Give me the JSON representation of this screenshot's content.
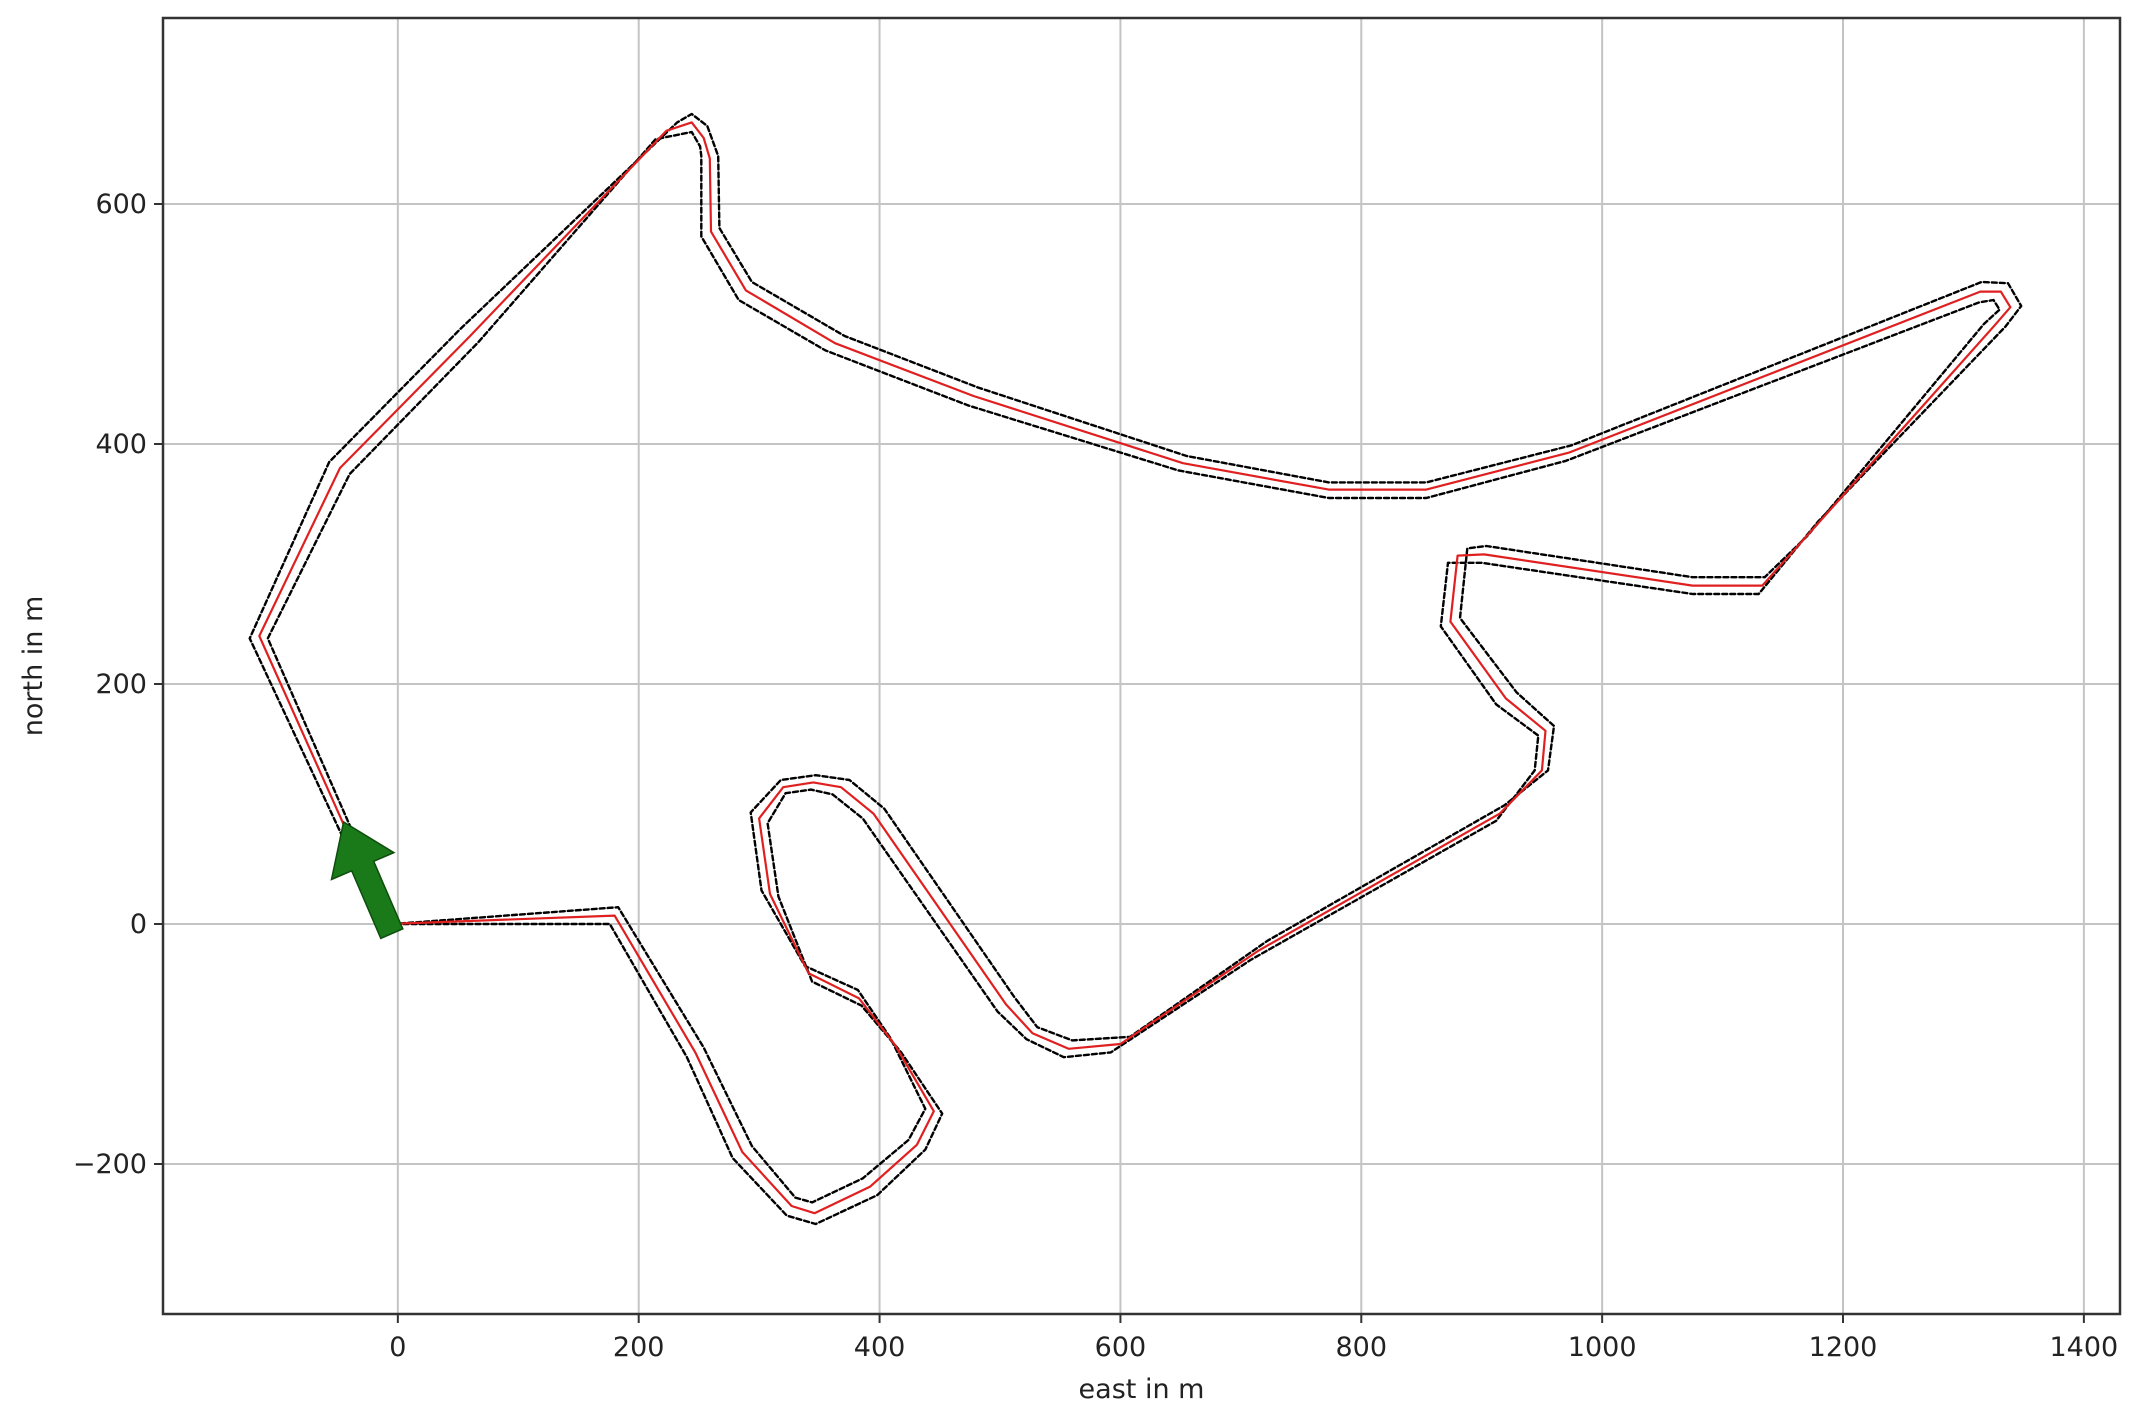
{
  "chart_data": {
    "type": "line",
    "title": "",
    "xlabel": "east in m",
    "ylabel": "north in m",
    "xlim": [
      -195,
      1430
    ],
    "ylim": [
      -325,
      755
    ],
    "x_ticks": [
      0,
      200,
      400,
      600,
      800,
      1000,
      1200,
      1400
    ],
    "y_ticks": [
      -200,
      0,
      200,
      400,
      600
    ],
    "grid": true,
    "series": [
      {
        "role": "track-boundary-outer",
        "color": "#000000",
        "style": "dashed",
        "points": [
          [
            -12,
            0
          ],
          [
            -123,
            238
          ],
          [
            -57,
            385
          ],
          [
            52,
            496
          ],
          [
            232,
            668
          ],
          [
            244,
            675
          ],
          [
            257,
            665
          ],
          [
            266,
            640
          ],
          [
            267,
            580
          ],
          [
            294,
            535
          ],
          [
            371,
            490
          ],
          [
            482,
            447
          ],
          [
            655,
            390
          ],
          [
            773,
            368
          ],
          [
            854,
            368
          ],
          [
            975,
            399
          ],
          [
            1315,
            535
          ],
          [
            1337,
            534
          ],
          [
            1348,
            515
          ],
          [
            1335,
            498
          ],
          [
            1179,
            335
          ],
          [
            1130,
            275
          ],
          [
            1075,
            275
          ],
          [
            900,
            301
          ],
          [
            872,
            301
          ],
          [
            866,
            248
          ],
          [
            912,
            183
          ],
          [
            947,
            157
          ],
          [
            944,
            128
          ],
          [
            912,
            86
          ],
          [
            708,
            -30
          ],
          [
            592,
            -107
          ],
          [
            553,
            -111
          ],
          [
            522,
            -96
          ],
          [
            498,
            -73
          ],
          [
            386,
            88
          ],
          [
            361,
            108
          ],
          [
            343,
            112
          ],
          [
            322,
            109
          ],
          [
            307,
            84
          ],
          [
            316,
            23
          ],
          [
            344,
            -48
          ],
          [
            385,
            -68
          ],
          [
            418,
            -107
          ],
          [
            452,
            -158
          ],
          [
            438,
            -188
          ],
          [
            398,
            -226
          ],
          [
            347,
            -250
          ],
          [
            323,
            -243
          ],
          [
            278,
            -195
          ],
          [
            240,
            -111
          ],
          [
            176,
            0
          ],
          [
            -12,
            0
          ]
        ]
      },
      {
        "role": "track-boundary-inner",
        "color": "#000000",
        "style": "dashed",
        "points": [
          [
            -4,
            0
          ],
          [
            -108,
            238
          ],
          [
            -40,
            375
          ],
          [
            67,
            485
          ],
          [
            214,
            654
          ],
          [
            244,
            660
          ],
          [
            251,
            648
          ],
          [
            252,
            640
          ],
          [
            252,
            573
          ],
          [
            283,
            520
          ],
          [
            355,
            478
          ],
          [
            474,
            432
          ],
          [
            648,
            378
          ],
          [
            773,
            355
          ],
          [
            854,
            355
          ],
          [
            970,
            386
          ],
          [
            1313,
            518
          ],
          [
            1325,
            520
          ],
          [
            1330,
            512
          ],
          [
            1317,
            500
          ],
          [
            1170,
            323
          ],
          [
            1135,
            289
          ],
          [
            1075,
            289
          ],
          [
            904,
            315
          ],
          [
            888,
            313
          ],
          [
            882,
            255
          ],
          [
            929,
            193
          ],
          [
            960,
            165
          ],
          [
            955,
            128
          ],
          [
            919,
            99
          ],
          [
            722,
            -14
          ],
          [
            608,
            -94
          ],
          [
            560,
            -97
          ],
          [
            531,
            -86
          ],
          [
            512,
            -61
          ],
          [
            404,
            96
          ],
          [
            375,
            120
          ],
          [
            347,
            124
          ],
          [
            318,
            120
          ],
          [
            293,
            93
          ],
          [
            302,
            28
          ],
          [
            338,
            -35
          ],
          [
            382,
            -55
          ],
          [
            409,
            -95
          ],
          [
            438,
            -154
          ],
          [
            424,
            -180
          ],
          [
            386,
            -212
          ],
          [
            344,
            -232
          ],
          [
            330,
            -228
          ],
          [
            294,
            -185
          ],
          [
            254,
            -103
          ],
          [
            183,
            14
          ],
          [
            -4,
            0
          ]
        ]
      },
      {
        "role": "racing-line",
        "color": "#e02020",
        "style": "solid",
        "points": [
          [
            -8,
            0
          ],
          [
            -115,
            240
          ],
          [
            -48,
            380
          ],
          [
            60,
            490
          ],
          [
            223,
            661
          ],
          [
            244,
            668
          ],
          [
            254,
            655
          ],
          [
            259,
            638
          ],
          [
            260,
            577
          ],
          [
            289,
            528
          ],
          [
            363,
            484
          ],
          [
            478,
            440
          ],
          [
            652,
            384
          ],
          [
            773,
            362
          ],
          [
            854,
            362
          ],
          [
            973,
            393
          ],
          [
            1314,
            527
          ],
          [
            1331,
            527
          ],
          [
            1339,
            514
          ],
          [
            1326,
            499
          ],
          [
            1175,
            329
          ],
          [
            1133,
            282
          ],
          [
            1075,
            282
          ],
          [
            902,
            308
          ],
          [
            880,
            307
          ],
          [
            874,
            252
          ],
          [
            920,
            188
          ],
          [
            953,
            161
          ],
          [
            950,
            128
          ],
          [
            915,
            92
          ],
          [
            715,
            -22
          ],
          [
            600,
            -100
          ],
          [
            557,
            -104
          ],
          [
            527,
            -91
          ],
          [
            505,
            -67
          ],
          [
            395,
            92
          ],
          [
            368,
            114
          ],
          [
            345,
            118
          ],
          [
            320,
            114
          ],
          [
            300,
            88
          ],
          [
            309,
            25
          ],
          [
            341,
            -41
          ],
          [
            383,
            -62
          ],
          [
            413,
            -101
          ],
          [
            445,
            -156
          ],
          [
            431,
            -184
          ],
          [
            392,
            -219
          ],
          [
            346,
            -241
          ],
          [
            327,
            -235
          ],
          [
            286,
            -190
          ],
          [
            247,
            -107
          ],
          [
            180,
            7
          ],
          [
            -8,
            0
          ]
        ]
      }
    ],
    "annotations": [
      {
        "type": "arrow",
        "color": "#1a7a1a",
        "tail": [
          -5,
          -8
        ],
        "head": [
          -45,
          85
        ]
      }
    ]
  }
}
